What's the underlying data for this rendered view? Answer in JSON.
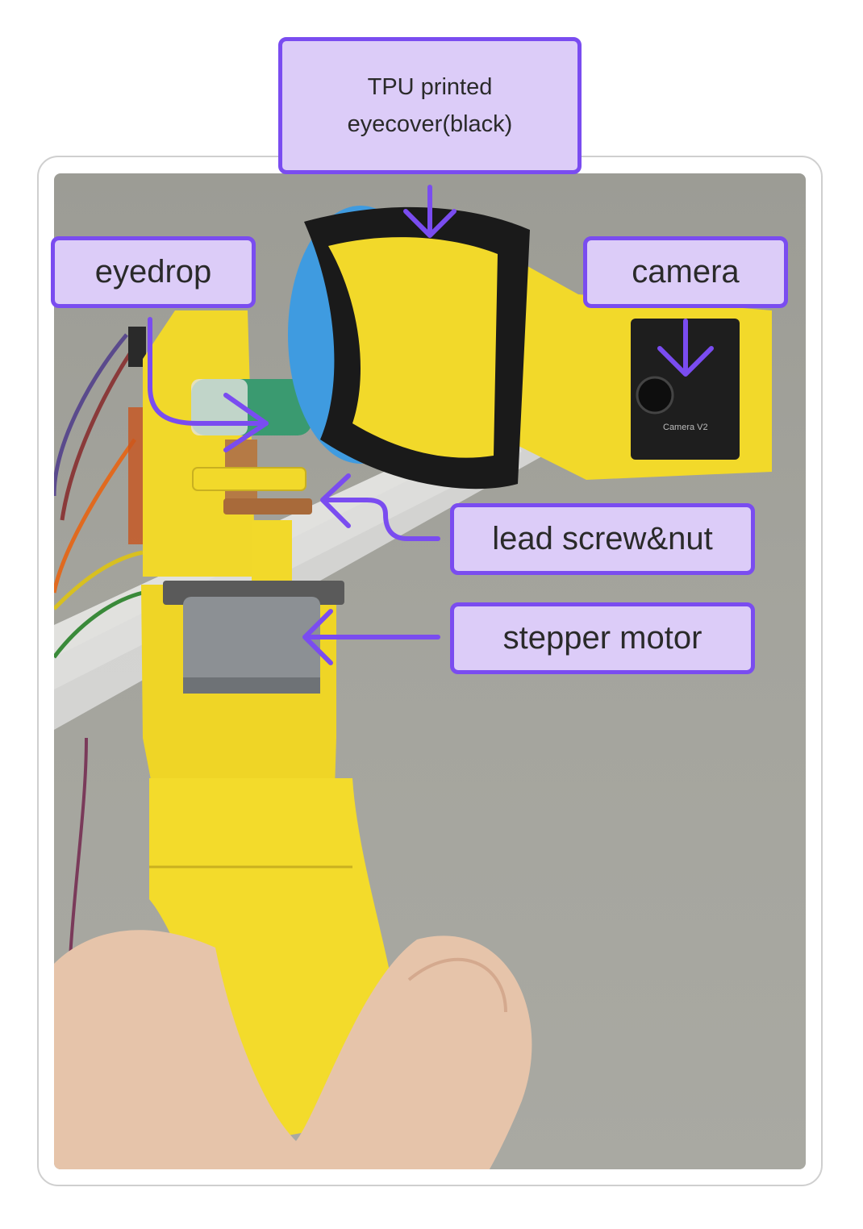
{
  "labels": {
    "tpu_eyecover": "TPU printed\neyecover(black)",
    "eyedrop": "eyedrop",
    "camera": "camera",
    "lead_screw_nut": "lead screw&nut",
    "stepper_motor": "stepper motor"
  },
  "colors": {
    "label_fill": "#dcccf8",
    "label_border": "#7a4cf0",
    "arrow": "#7a4cf0",
    "printed_part": "#f2dc2a"
  },
  "photo_subject": {
    "camera_text": "Camera V2"
  }
}
